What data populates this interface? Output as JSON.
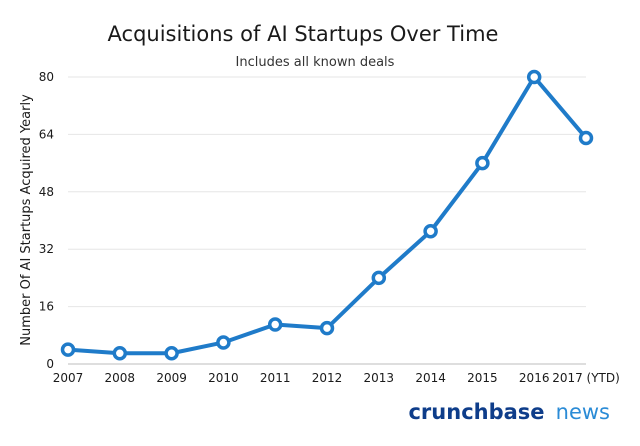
{
  "chart_data": {
    "type": "line",
    "title": "Acquisitions of AI Startups Over Time",
    "subtitle": "Includes all known deals",
    "xlabel": "",
    "ylabel": "Number Of AI Startups Acquired Yearly",
    "categories": [
      "2007",
      "2008",
      "2009",
      "2010",
      "2011",
      "2012",
      "2013",
      "2014",
      "2015",
      "2016",
      "2017 (YTD)"
    ],
    "series": [
      {
        "values": [
          4,
          3,
          3,
          6,
          11,
          10,
          24,
          37,
          56,
          80,
          63
        ]
      }
    ],
    "ylim": [
      0,
      80
    ],
    "yticks": [
      0,
      16,
      32,
      48,
      64,
      80
    ],
    "grid": true,
    "legend": "none"
  },
  "colors": {
    "line": "#1f7bc9",
    "brand_a": "#0e3d8a",
    "brand_b": "#2a8bd6"
  },
  "brand": {
    "part_a": "crunchbase",
    "part_b": "news"
  }
}
